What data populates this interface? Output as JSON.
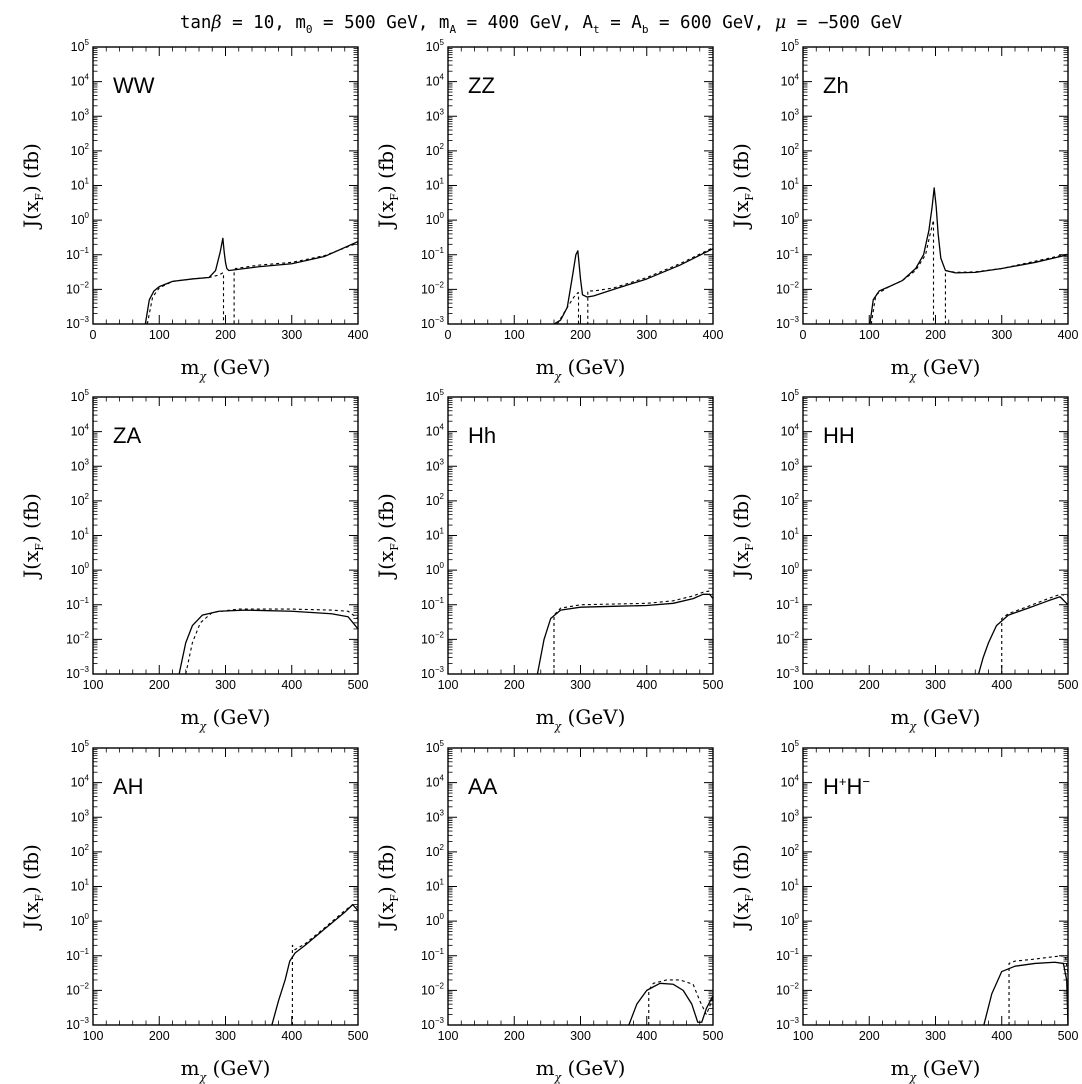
{
  "figure": {
    "title": "tanβ = 10, m₀ = 500 GeV, m_A = 400 GeV, A_t = A_b = 600 GeV, μ = −500 GeV",
    "title_parts": {
      "tan": "tan",
      "beta": "β",
      "eq1": " = 10, m",
      "m0_sub": "0",
      "eq2": " = 500 GeV, m",
      "mA_sub": "A",
      "eq3": " = 400 GeV, A",
      "At_sub": "t",
      "eq4": " = A",
      "Ab_sub": "b",
      "eq5": " = 600 GeV, ",
      "mu": "μ",
      "eq6": " = −500 GeV"
    },
    "xlabel_main": "m",
    "xlabel_sub": "χ",
    "xlabel_unit": " (GeV)",
    "ylabel_main": "J(x",
    "ylabel_sub": "F",
    "ylabel_unit": ")  (fb)",
    "line_styles": {
      "solid": "#000000",
      "dotted": "#000000"
    }
  },
  "chart_data": [
    {
      "type": "line",
      "annotation": "WW",
      "xscale": "linear",
      "yscale": "log",
      "xlim": [
        0,
        400
      ],
      "ylim": [
        0.001,
        100000
      ],
      "xticks": [
        0,
        100,
        200,
        300,
        400
      ],
      "yticks_exp": [
        -3,
        -2,
        -1,
        0,
        1,
        2,
        3,
        4,
        5
      ],
      "series": [
        {
          "style": "solid",
          "x": [
            79,
            85,
            92,
            100,
            120,
            150,
            175,
            185,
            192,
            196,
            198,
            200,
            202,
            205,
            210,
            250,
            300,
            350,
            400
          ],
          "y": [
            0.001,
            0.005,
            0.009,
            0.012,
            0.017,
            0.02,
            0.022,
            0.035,
            0.12,
            0.3,
            0.12,
            0.06,
            0.04,
            0.035,
            0.036,
            0.045,
            0.055,
            0.09,
            0.24
          ]
        },
        {
          "style": "dotted",
          "x": [
            82,
            90,
            100,
            120,
            150,
            175,
            190,
            196,
            197,
            197,
            213,
            213,
            215,
            250,
            300,
            350,
            400
          ],
          "y": [
            0.001,
            0.006,
            0.011,
            0.017,
            0.02,
            0.022,
            0.026,
            0.03,
            0.03,
            0.001,
            0.001,
            0.03,
            0.04,
            0.05,
            0.06,
            0.095,
            0.22
          ]
        }
      ]
    },
    {
      "type": "line",
      "annotation": "ZZ",
      "xscale": "linear",
      "yscale": "log",
      "xlim": [
        0,
        400
      ],
      "ylim": [
        0.001,
        100000
      ],
      "xticks": [
        0,
        100,
        200,
        300,
        400
      ],
      "yticks_exp": [
        -3,
        -2,
        -1,
        0,
        1,
        2,
        3,
        4,
        5
      ],
      "series": [
        {
          "style": "solid",
          "x": [
            160,
            170,
            180,
            188,
            193,
            196,
            200,
            203,
            210,
            220,
            250,
            300,
            350,
            400
          ],
          "y": [
            0.001,
            0.0013,
            0.003,
            0.025,
            0.1,
            0.13,
            0.02,
            0.007,
            0.006,
            0.0065,
            0.01,
            0.02,
            0.05,
            0.15
          ]
        },
        {
          "style": "dotted",
          "x": [
            165,
            180,
            190,
            196,
            197,
            197,
            211,
            211,
            220,
            250,
            300,
            350,
            400
          ],
          "y": [
            0.001,
            0.003,
            0.006,
            0.008,
            0.008,
            0.001,
            0.001,
            0.009,
            0.009,
            0.011,
            0.022,
            0.055,
            0.16
          ]
        }
      ]
    },
    {
      "type": "line",
      "annotation": "Zh",
      "xscale": "linear",
      "yscale": "log",
      "xlim": [
        0,
        400
      ],
      "ylim": [
        0.001,
        100000
      ],
      "xticks": [
        0,
        100,
        200,
        300,
        400
      ],
      "yticks_exp": [
        -3,
        -2,
        -1,
        0,
        1,
        2,
        3,
        4,
        5
      ],
      "series": [
        {
          "style": "solid",
          "x": [
            101,
            106,
            115,
            130,
            150,
            170,
            182,
            190,
            195,
            198,
            201,
            204,
            208,
            215,
            230,
            260,
            300,
            350,
            400
          ],
          "y": [
            0.001,
            0.005,
            0.009,
            0.012,
            0.018,
            0.04,
            0.1,
            0.5,
            2.5,
            8.5,
            2.5,
            0.4,
            0.08,
            0.035,
            0.03,
            0.031,
            0.04,
            0.06,
            0.1
          ]
        },
        {
          "style": "dotted",
          "x": [
            103,
            110,
            130,
            150,
            170,
            185,
            192,
            197,
            197,
            215,
            215,
            230,
            260,
            300,
            350,
            400
          ],
          "y": [
            0.001,
            0.007,
            0.012,
            0.018,
            0.035,
            0.1,
            0.4,
            1.0,
            0.001,
            0.001,
            0.035,
            0.031,
            0.032,
            0.04,
            0.065,
            0.105
          ]
        }
      ]
    },
    {
      "type": "line",
      "annotation": "ZA",
      "xscale": "linear",
      "yscale": "log",
      "xlim": [
        100,
        500
      ],
      "ylim": [
        0.001,
        100000
      ],
      "xticks": [
        100,
        200,
        300,
        400,
        500
      ],
      "yticks_exp": [
        -3,
        -2,
        -1,
        0,
        1,
        2,
        3,
        4,
        5
      ],
      "series": [
        {
          "style": "solid",
          "x": [
            230,
            240,
            250,
            265,
            290,
            330,
            400,
            460,
            485,
            500
          ],
          "y": [
            0.001,
            0.008,
            0.025,
            0.05,
            0.065,
            0.07,
            0.065,
            0.055,
            0.045,
            0.02
          ]
        },
        {
          "style": "dotted",
          "x": [
            240,
            250,
            262,
            280,
            320,
            400,
            460,
            485,
            500
          ],
          "y": [
            0.001,
            0.008,
            0.03,
            0.06,
            0.075,
            0.075,
            0.07,
            0.065,
            0.04
          ]
        }
      ]
    },
    {
      "type": "line",
      "annotation": "Hh",
      "xscale": "linear",
      "yscale": "log",
      "xlim": [
        100,
        500
      ],
      "ylim": [
        0.001,
        100000
      ],
      "xticks": [
        100,
        200,
        300,
        400,
        500
      ],
      "yticks_exp": [
        -3,
        -2,
        -1,
        0,
        1,
        2,
        3,
        4,
        5
      ],
      "series": [
        {
          "style": "solid",
          "x": [
            235,
            245,
            255,
            270,
            300,
            350,
            400,
            440,
            470,
            485,
            495,
            500
          ],
          "y": [
            0.001,
            0.01,
            0.04,
            0.07,
            0.085,
            0.09,
            0.095,
            0.11,
            0.15,
            0.2,
            0.2,
            0.15
          ]
        },
        {
          "style": "dotted",
          "x": [
            260,
            260,
            270,
            300,
            350,
            400,
            440,
            470,
            485,
            495,
            500
          ],
          "y": [
            0.001,
            0.05,
            0.08,
            0.1,
            0.105,
            0.11,
            0.13,
            0.18,
            0.23,
            0.25,
            0.25
          ]
        }
      ]
    },
    {
      "type": "line",
      "annotation": "HH",
      "xscale": "linear",
      "yscale": "log",
      "xlim": [
        100,
        500
      ],
      "ylim": [
        0.001,
        100000
      ],
      "xticks": [
        100,
        200,
        300,
        400,
        500
      ],
      "yticks_exp": [
        -3,
        -2,
        -1,
        0,
        1,
        2,
        3,
        4,
        5
      ],
      "series": [
        {
          "style": "solid",
          "x": [
            365,
            372,
            380,
            392,
            410,
            440,
            470,
            488,
            500
          ],
          "y": [
            0.001,
            0.003,
            0.008,
            0.025,
            0.05,
            0.08,
            0.13,
            0.17,
            0.1
          ]
        },
        {
          "style": "dotted",
          "x": [
            400,
            400,
            410,
            440,
            470,
            488,
            500
          ],
          "y": [
            0.001,
            0.04,
            0.055,
            0.09,
            0.15,
            0.2,
            0.18
          ]
        }
      ]
    },
    {
      "type": "line",
      "annotation": "AH",
      "xscale": "linear",
      "yscale": "log",
      "xlim": [
        100,
        500
      ],
      "ylim": [
        0.001,
        100000
      ],
      "xticks": [
        100,
        200,
        300,
        400,
        500
      ],
      "yticks_exp": [
        -3,
        -2,
        -1,
        0,
        1,
        2,
        3,
        4,
        5
      ],
      "series": [
        {
          "style": "solid",
          "x": [
            370,
            380,
            390,
            397,
            405,
            420,
            450,
            480,
            492,
            500
          ],
          "y": [
            0.001,
            0.005,
            0.02,
            0.07,
            0.12,
            0.2,
            0.6,
            1.8,
            3.0,
            2.0
          ]
        },
        {
          "style": "dotted",
          "x": [
            401,
            401,
            405,
            420,
            450,
            480,
            492,
            500
          ],
          "y": [
            0.001,
            0.2,
            0.15,
            0.22,
            0.65,
            2.0,
            3.0,
            2.5
          ]
        }
      ]
    },
    {
      "type": "line",
      "annotation": "AA",
      "xscale": "linear",
      "yscale": "log",
      "xlim": [
        100,
        500
      ],
      "ylim": [
        0.001,
        100000
      ],
      "xticks": [
        100,
        200,
        300,
        400,
        500
      ],
      "yticks_exp": [
        -3,
        -2,
        -1,
        0,
        1,
        2,
        3,
        4,
        5
      ],
      "series": [
        {
          "style": "solid",
          "x": [
            373,
            385,
            400,
            420,
            440,
            455,
            468,
            477,
            483,
            490,
            500
          ],
          "y": [
            0.001,
            0.004,
            0.01,
            0.016,
            0.015,
            0.01,
            0.004,
            0.0012,
            0.0012,
            0.003,
            0.007
          ]
        },
        {
          "style": "dotted",
          "x": [
            403,
            403,
            410,
            430,
            450,
            470,
            480,
            490,
            500
          ],
          "y": [
            0.001,
            0.01,
            0.016,
            0.02,
            0.02,
            0.015,
            0.005,
            0.002,
            0.006
          ]
        }
      ]
    },
    {
      "type": "line",
      "annotation_main": "H",
      "annotation_sup1": "+",
      "annotation_mid": "H",
      "annotation_sup2": "−",
      "xscale": "linear",
      "yscale": "log",
      "xlim": [
        100,
        500
      ],
      "ylim": [
        0.001,
        100000
      ],
      "xticks": [
        100,
        200,
        300,
        400,
        500
      ],
      "yticks_exp": [
        -3,
        -2,
        -1,
        0,
        1,
        2,
        3,
        4,
        5
      ],
      "series": [
        {
          "style": "solid",
          "x": [
            373,
            385,
            400,
            420,
            450,
            480,
            493,
            498,
            500
          ],
          "y": [
            0.001,
            0.008,
            0.035,
            0.05,
            0.06,
            0.065,
            0.06,
            0.02,
            0.001
          ]
        },
        {
          "style": "dotted",
          "x": [
            411,
            411,
            420,
            450,
            480,
            496,
            500
          ],
          "y": [
            0.001,
            0.06,
            0.07,
            0.08,
            0.095,
            0.1,
            0.03
          ]
        }
      ]
    }
  ]
}
